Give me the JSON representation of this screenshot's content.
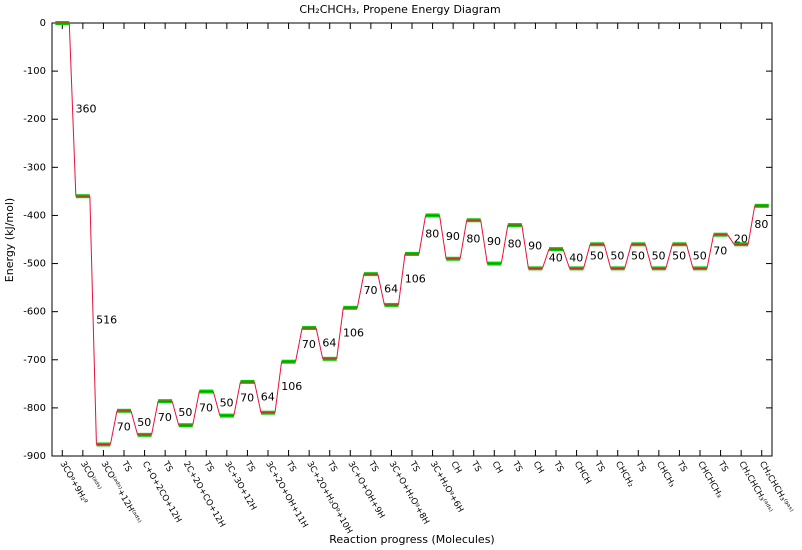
{
  "chart_data": {
    "type": "energy-diagram",
    "title": "CH₂CHCH₃, Propene Energy Diagram",
    "xlabel": "Reaction progress (Molecules)",
    "ylabel": "Energy (kJ/mol)",
    "categories": [
      "3COᵍ+9H₂ᵍ",
      "3CO⁽ᵃᵈˢ⁾",
      "3CO⁽ᵃᵈˢ⁾+12H⁽ᵃᵈˢ⁾",
      "TS",
      "C+O+2CO+12H",
      "TS",
      "2C+2O+CO+12H",
      "TS",
      "3C+3O+12H",
      "TS",
      "3C+2O+OH+11H",
      "TS",
      "3C+2O+H₂Oᵍ+10H",
      "TS",
      "3C+O+OH+9H",
      "TS",
      "3C+O+H₂Oᵍ+8H",
      "TS",
      "3C+H₂Oᵍ+6H",
      "CH",
      "TS",
      "CH",
      "TS",
      "CH",
      "TS",
      "CHCH",
      "TS",
      "CHCH₂",
      "TS",
      "CHCH₃",
      "TS",
      "CHCHCH₃",
      "TS",
      "CH₂CHCH₃⁽ᵃᵈˢ⁾",
      "CH₂CHCH₃⁽ᵍᵃˢ⁾"
    ],
    "values": [
      0,
      -360,
      -876,
      -806,
      -856,
      -786,
      -836,
      -766,
      -816,
      -746,
      -810,
      -704,
      -634,
      -698,
      -592,
      -522,
      -586,
      -480,
      -400,
      -490,
      -410,
      -500,
      -420,
      -510,
      -470,
      -510,
      -460,
      -510,
      -460,
      -510,
      -460,
      -510,
      -440,
      -460,
      -380
    ],
    "step_labels": [
      360,
      516,
      70,
      50,
      70,
      50,
      70,
      50,
      70,
      64,
      106,
      70,
      64,
      106,
      70,
      64,
      106,
      80,
      90,
      80,
      90,
      80,
      90,
      40,
      40,
      50,
      50,
      50,
      50,
      50,
      50,
      70,
      20,
      80
    ],
    "level_color": "#00cc00",
    "line_color": "#e8103c",
    "ylim": [
      -900,
      0
    ],
    "yticks": [
      -900,
      -800,
      -700,
      -600,
      -500,
      -400,
      -300,
      -200,
      -100,
      0
    ]
  }
}
